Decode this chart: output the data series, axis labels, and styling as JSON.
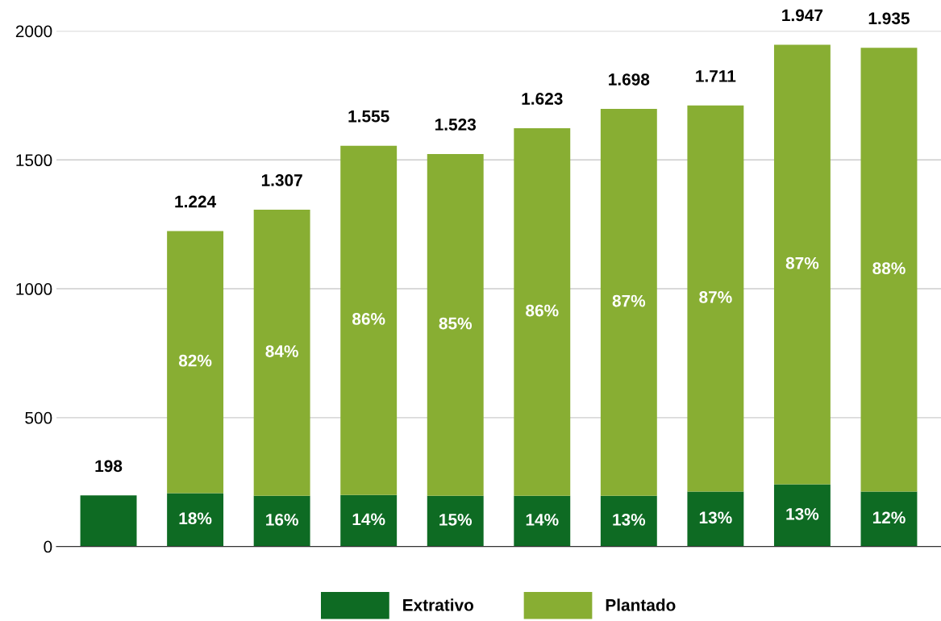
{
  "chart_data": {
    "type": "bar",
    "stacked": true,
    "categories": [
      null,
      null,
      null,
      null,
      null,
      null,
      null,
      null,
      null,
      null
    ],
    "series": [
      {
        "name": "Extrativo",
        "color": "#0e6b23",
        "values": [
          198,
          207,
          197,
          200,
          197,
          197,
          197,
          213,
          241,
          213
        ]
      },
      {
        "name": "Plantado",
        "color": "#88ae33",
        "values": [
          null,
          1017,
          1110,
          1355,
          1326,
          1426,
          1501,
          1498,
          1706,
          1722
        ]
      }
    ],
    "annotations": [
      "18%",
      "16%",
      "14%",
      "15%",
      "14%",
      "13%",
      "13%",
      "13%",
      "12%",
      "82%",
      "84%",
      "86%",
      "85%",
      "86%",
      "87%",
      "87%",
      "87%",
      "88%"
    ],
    "totals": [
      "198",
      "1.224",
      "1.307",
      "1.555",
      "1.523",
      "1.623",
      "1.698",
      "1.711",
      "1.947",
      "1.935"
    ],
    "ylim": [
      0,
      2000
    ],
    "yticks": [
      0,
      500,
      1000,
      1500,
      2000
    ],
    "grid": "y",
    "legend": "bottom",
    "tick_labels": "y"
  }
}
